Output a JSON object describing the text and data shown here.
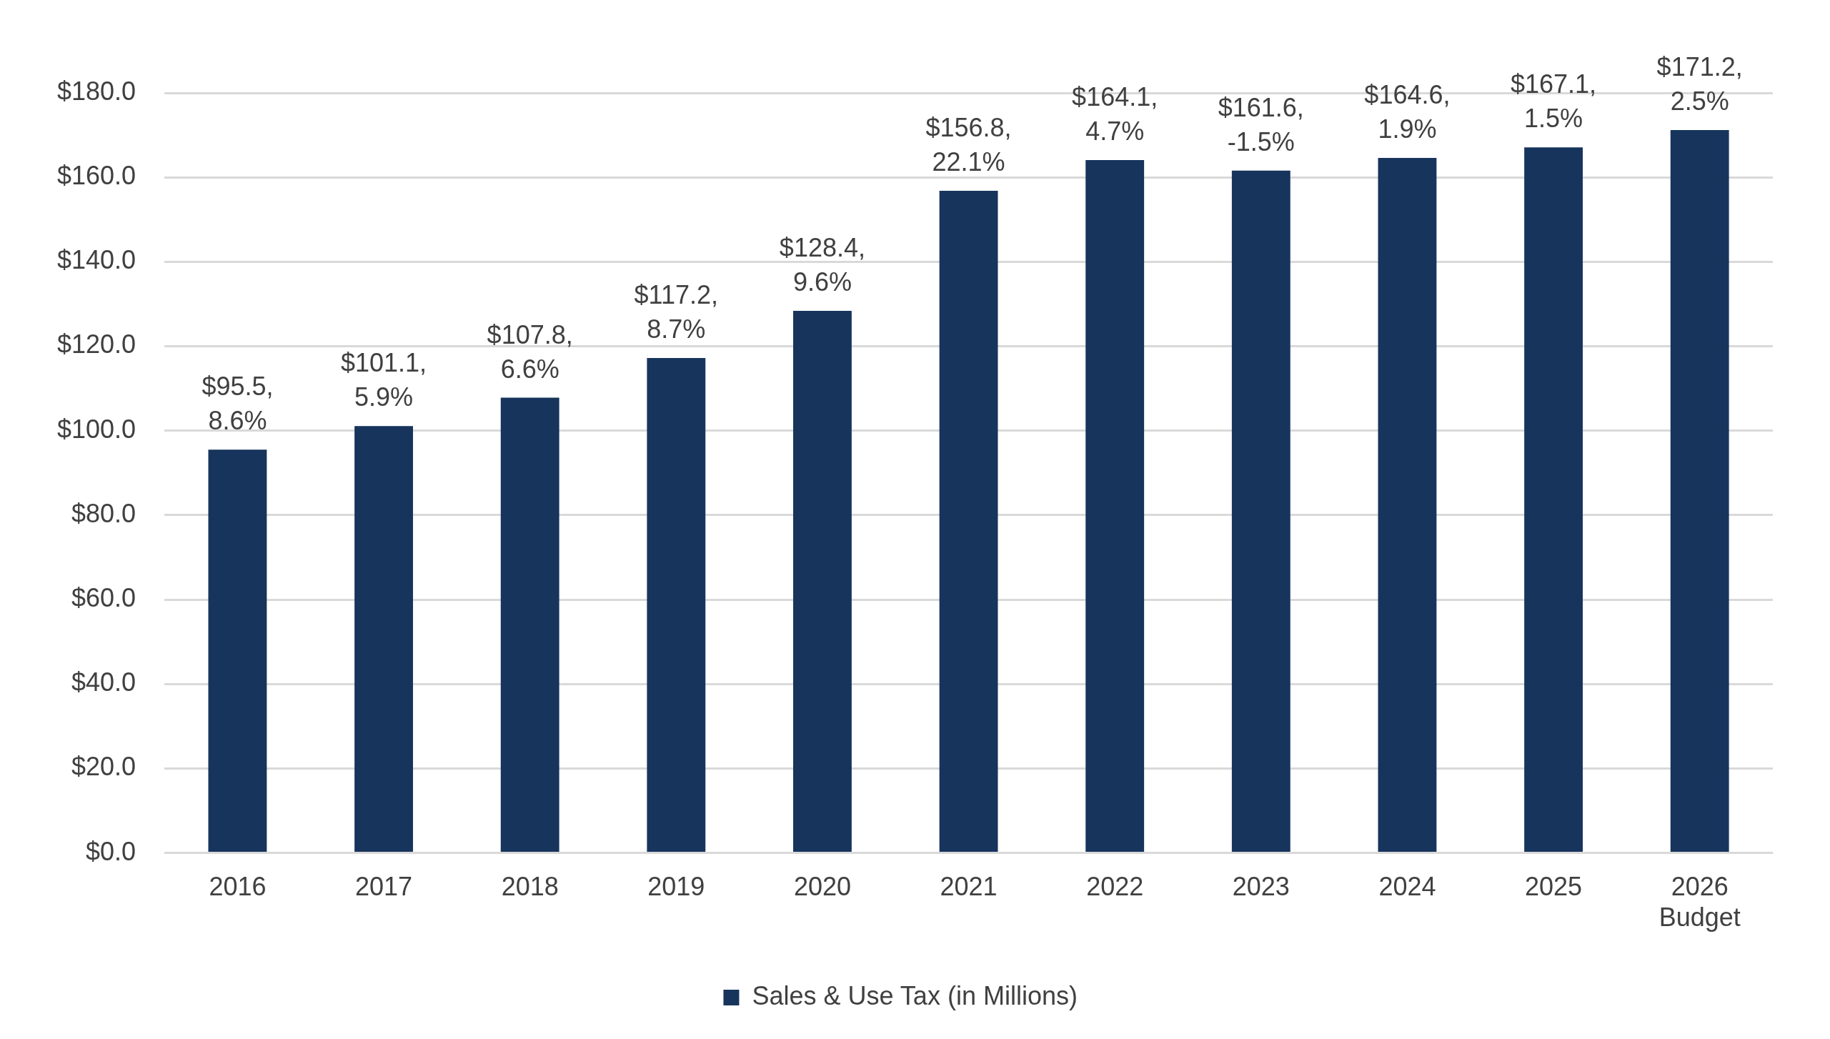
{
  "chart_data": {
    "type": "bar",
    "categories": [
      "2016",
      "2017",
      "2018",
      "2019",
      "2020",
      "2021",
      "2022",
      "2023",
      "2024",
      "2025",
      "2026\nBudget"
    ],
    "series": [
      {
        "name": "Sales & Use Tax (in Millions)",
        "color": "#17345c",
        "values": [
          95.5,
          101.1,
          107.8,
          117.2,
          128.4,
          156.8,
          164.1,
          161.6,
          164.6,
          167.1,
          171.2
        ],
        "value_labels": [
          "$95.5, 8.6%",
          "$101.1, 5.9%",
          "$107.8, 6.6%",
          "$117.2, 8.7%",
          "$128.4, 9.6%",
          "$156.8, 22.1%",
          "$164.1, 4.7%",
          "$161.6, -1.5%",
          "$164.6, 1.9%",
          "$167.1, 1.5%",
          "$171.2, 2.5%"
        ]
      }
    ],
    "ylim": [
      0,
      180
    ],
    "yticks": [
      {
        "value": 0,
        "label": "$0.0"
      },
      {
        "value": 20,
        "label": "$20.0"
      },
      {
        "value": 40,
        "label": "$40.0"
      },
      {
        "value": 60,
        "label": "$60.0"
      },
      {
        "value": 80,
        "label": "$80.0"
      },
      {
        "value": 100,
        "label": "$100.0"
      },
      {
        "value": 120,
        "label": "$120.0"
      },
      {
        "value": 140,
        "label": "$140.0"
      },
      {
        "value": 160,
        "label": "$160.0"
      },
      {
        "value": 180,
        "label": "$180.0"
      }
    ],
    "grid": "y",
    "legend": "bottom"
  }
}
